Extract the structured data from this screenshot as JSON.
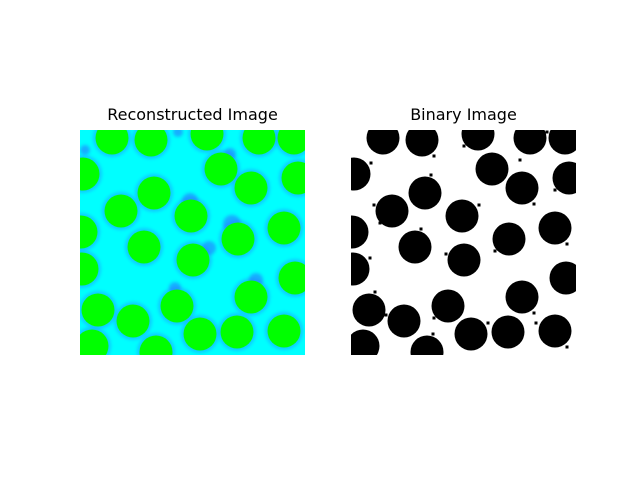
{
  "panels": {
    "left": {
      "title": "Reconstructed Image",
      "background_color": "#00ffff",
      "circle_color": "#00ff00",
      "halo_color": "#2a6cff"
    },
    "right": {
      "title": "Binary Image",
      "background_color": "#ffffff",
      "circle_color": "#000000"
    }
  }
}
